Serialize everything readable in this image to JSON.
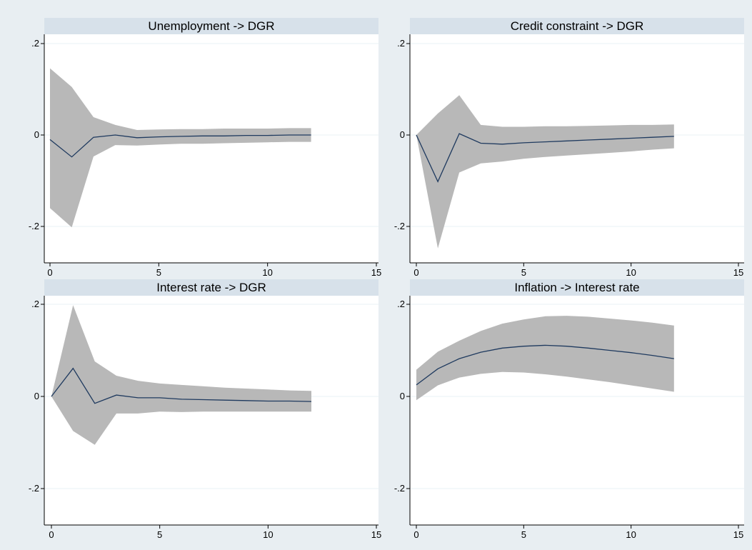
{
  "colors": {
    "background": "#e8eef2",
    "panel": "#ffffff",
    "title_bar": "#d7e1ea",
    "band": "#b8b8b8",
    "line": "#1f3a5f",
    "axis": "#000000",
    "grid": "#eaf0f4"
  },
  "chart_data": [
    {
      "type": "area",
      "title": "Unemployment -> DGR",
      "xlim": [
        0,
        15
      ],
      "ylim": [
        -0.26,
        0.22
      ],
      "xticks": [
        0,
        5,
        10,
        15
      ],
      "xtick_labels": [
        "0",
        "5",
        "10",
        "15"
      ],
      "yticks": [
        -0.2,
        0,
        0.2
      ],
      "ytick_labels": [
        "-.2",
        "0",
        ".2"
      ],
      "grid": true,
      "x": [
        0,
        1,
        2,
        3,
        4,
        5,
        6,
        7,
        8,
        9,
        10,
        11,
        12
      ],
      "series": [
        {
          "role": "irf",
          "values": [
            -0.01,
            -0.048,
            -0.005,
            0.0,
            -0.006,
            -0.004,
            -0.003,
            -0.002,
            -0.002,
            -0.001,
            -0.001,
            0.0,
            0.0
          ]
        },
        {
          "role": "lower",
          "values": [
            -0.16,
            -0.202,
            -0.047,
            -0.022,
            -0.023,
            -0.021,
            -0.019,
            -0.019,
            -0.018,
            -0.017,
            -0.016,
            -0.015,
            -0.015
          ]
        },
        {
          "role": "upper",
          "values": [
            0.146,
            0.105,
            0.039,
            0.022,
            0.011,
            0.012,
            0.013,
            0.013,
            0.014,
            0.014,
            0.014,
            0.015,
            0.015
          ]
        }
      ]
    },
    {
      "type": "area",
      "title": "Credit constraint -> DGR",
      "xlim": [
        0,
        15
      ],
      "ylim": [
        -0.26,
        0.22
      ],
      "xticks": [
        0,
        5,
        10,
        15
      ],
      "xtick_labels": [
        "0",
        "5",
        "10",
        "15"
      ],
      "yticks": [
        -0.2,
        0,
        0.2
      ],
      "ytick_labels": [
        "-.2",
        "0",
        ".2"
      ],
      "grid": true,
      "x": [
        0,
        1,
        2,
        3,
        4,
        5,
        6,
        7,
        8,
        9,
        10,
        11,
        12
      ],
      "series": [
        {
          "role": "irf",
          "values": [
            0.0,
            -0.102,
            0.003,
            -0.018,
            -0.02,
            -0.017,
            -0.015,
            -0.013,
            -0.011,
            -0.009,
            -0.007,
            -0.005,
            -0.003
          ]
        },
        {
          "role": "lower",
          "values": [
            0.0,
            -0.248,
            -0.082,
            -0.062,
            -0.058,
            -0.052,
            -0.048,
            -0.045,
            -0.042,
            -0.039,
            -0.036,
            -0.032,
            -0.029
          ]
        },
        {
          "role": "upper",
          "values": [
            0.0,
            0.047,
            0.087,
            0.022,
            0.018,
            0.018,
            0.019,
            0.019,
            0.02,
            0.021,
            0.022,
            0.022,
            0.023
          ]
        }
      ]
    },
    {
      "type": "area",
      "title": "Interest rate -> DGR",
      "xlim": [
        0,
        15
      ],
      "ylim": [
        -0.26,
        0.22
      ],
      "xticks": [
        0,
        5,
        10,
        15
      ],
      "xtick_labels": [
        "0",
        "5",
        "10",
        "15"
      ],
      "yticks": [
        -0.2,
        0,
        0.2
      ],
      "ytick_labels": [
        "-.2",
        "0",
        ".2"
      ],
      "grid": true,
      "x": [
        0,
        1,
        2,
        3,
        4,
        5,
        6,
        7,
        8,
        9,
        10,
        11,
        12
      ],
      "series": [
        {
          "role": "irf",
          "values": [
            0.0,
            0.061,
            -0.015,
            0.003,
            -0.003,
            -0.003,
            -0.006,
            -0.007,
            -0.008,
            -0.009,
            -0.01,
            -0.01,
            -0.011
          ]
        },
        {
          "role": "lower",
          "values": [
            0.0,
            -0.075,
            -0.105,
            -0.037,
            -0.037,
            -0.033,
            -0.034,
            -0.033,
            -0.033,
            -0.033,
            -0.033,
            -0.033,
            -0.033
          ]
        },
        {
          "role": "upper",
          "values": [
            0.0,
            0.198,
            0.076,
            0.045,
            0.034,
            0.028,
            0.025,
            0.022,
            0.019,
            0.017,
            0.015,
            0.013,
            0.012
          ]
        }
      ]
    },
    {
      "type": "area",
      "title": "Inflation -> Interest rate",
      "xlim": [
        0,
        15
      ],
      "ylim": [
        -0.26,
        0.22
      ],
      "xticks": [
        0,
        5,
        10,
        15
      ],
      "xtick_labels": [
        "0",
        "5",
        "10",
        "15"
      ],
      "yticks": [
        -0.2,
        0,
        0.2
      ],
      "ytick_labels": [
        "-.2",
        "0",
        ".2"
      ],
      "grid": true,
      "x": [
        0,
        1,
        2,
        3,
        4,
        5,
        6,
        7,
        8,
        9,
        10,
        11,
        12
      ],
      "series": [
        {
          "role": "irf",
          "values": [
            0.025,
            0.06,
            0.082,
            0.096,
            0.105,
            0.109,
            0.111,
            0.109,
            0.105,
            0.1,
            0.095,
            0.089,
            0.082
          ]
        },
        {
          "role": "lower",
          "values": [
            -0.008,
            0.024,
            0.041,
            0.049,
            0.053,
            0.052,
            0.048,
            0.043,
            0.037,
            0.031,
            0.024,
            0.017,
            0.01
          ]
        },
        {
          "role": "upper",
          "values": [
            0.058,
            0.097,
            0.121,
            0.142,
            0.158,
            0.167,
            0.174,
            0.175,
            0.173,
            0.169,
            0.165,
            0.16,
            0.154
          ]
        }
      ]
    }
  ]
}
